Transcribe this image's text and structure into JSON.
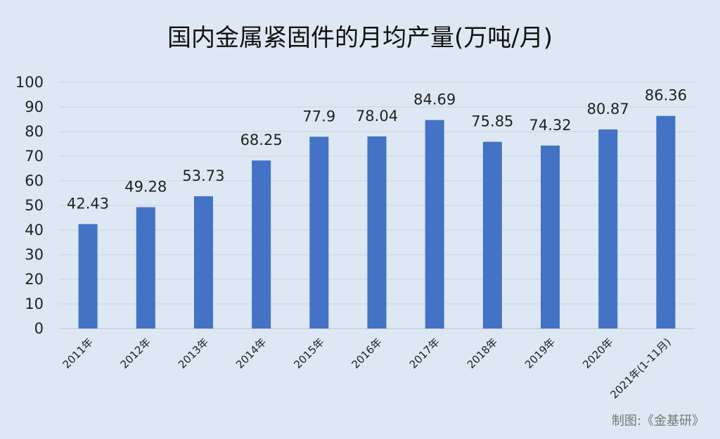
{
  "chart_data": {
    "type": "bar",
    "title": "国内金属紧固件的月均产量(万吨/月)",
    "categories": [
      "2011年",
      "2012年",
      "2013年",
      "2014年",
      "2015年",
      "2016年",
      "2017年",
      "2018年",
      "2019年",
      "2020年",
      "2021年(1-11月)"
    ],
    "values": [
      42.43,
      49.28,
      53.73,
      68.25,
      77.9,
      78.04,
      84.69,
      75.85,
      74.32,
      80.87,
      86.36
    ],
    "value_labels": [
      "42.43",
      "49.28",
      "53.73",
      "68.25",
      "77.9",
      "78.04",
      "84.69",
      "75.85",
      "74.32",
      "80.87",
      "86.36"
    ],
    "ylim": [
      0,
      100
    ],
    "yticks": [
      0,
      10,
      20,
      30,
      40,
      50,
      60,
      70,
      80,
      90,
      100
    ],
    "grid": true,
    "legend": "none",
    "bar_color": "#4472c4",
    "background_color": "#dde8f4"
  },
  "credit": "制图:《金基研》"
}
